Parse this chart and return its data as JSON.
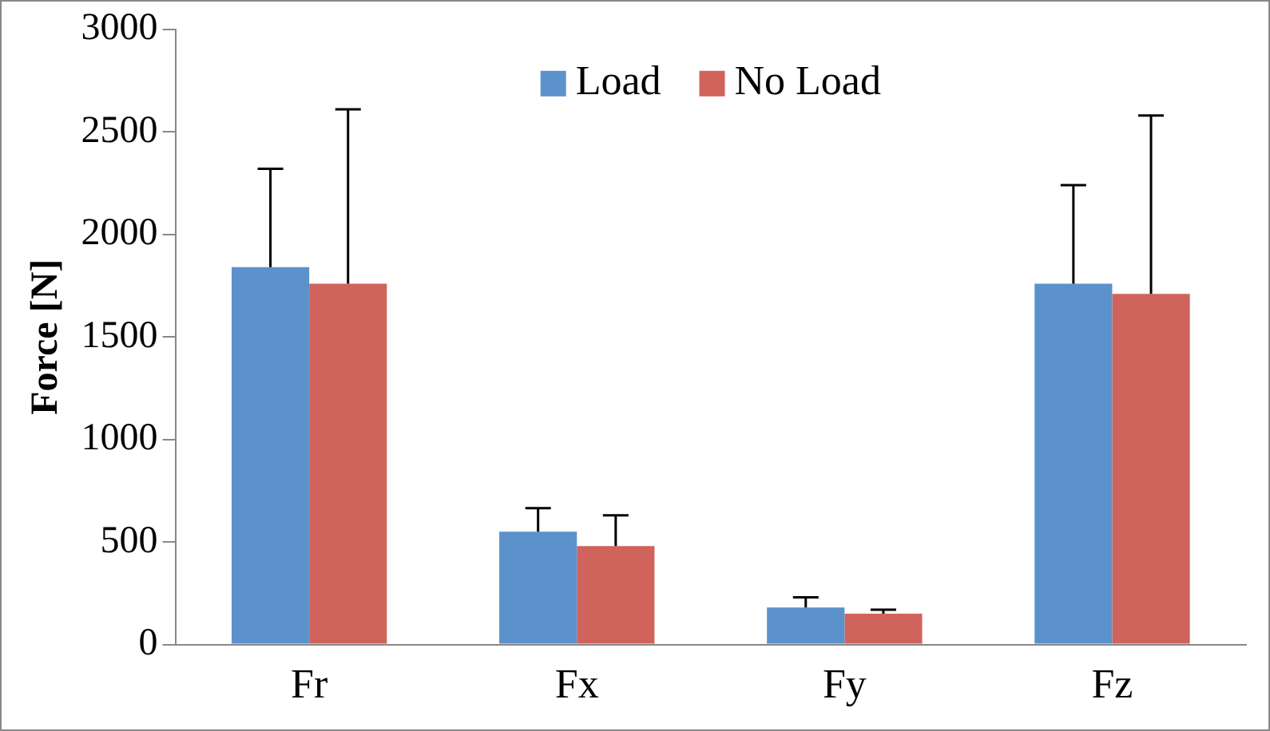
{
  "chart_data": {
    "type": "bar",
    "ylabel": "Force [N]",
    "categories": [
      "Fr",
      "Fx",
      "Fy",
      "Fz"
    ],
    "series": [
      {
        "name": "Load",
        "color": "#5b92cc",
        "values": [
          1840,
          550,
          180,
          1760
        ],
        "errors": [
          [
            1840,
            2320
          ],
          [
            550,
            665
          ],
          [
            180,
            230
          ],
          [
            1760,
            2240
          ]
        ]
      },
      {
        "name": "No Load",
        "color": "#d0635c",
        "values": [
          1760,
          480,
          150,
          1710
        ],
        "errors": [
          [
            1760,
            2610
          ],
          [
            480,
            630
          ],
          [
            150,
            170
          ],
          [
            1710,
            2580
          ]
        ]
      }
    ],
    "ylim": [
      0,
      3000
    ],
    "yticks": [
      0,
      500,
      1000,
      1500,
      2000,
      2500,
      3000
    ],
    "grid": false,
    "legend": "top"
  }
}
